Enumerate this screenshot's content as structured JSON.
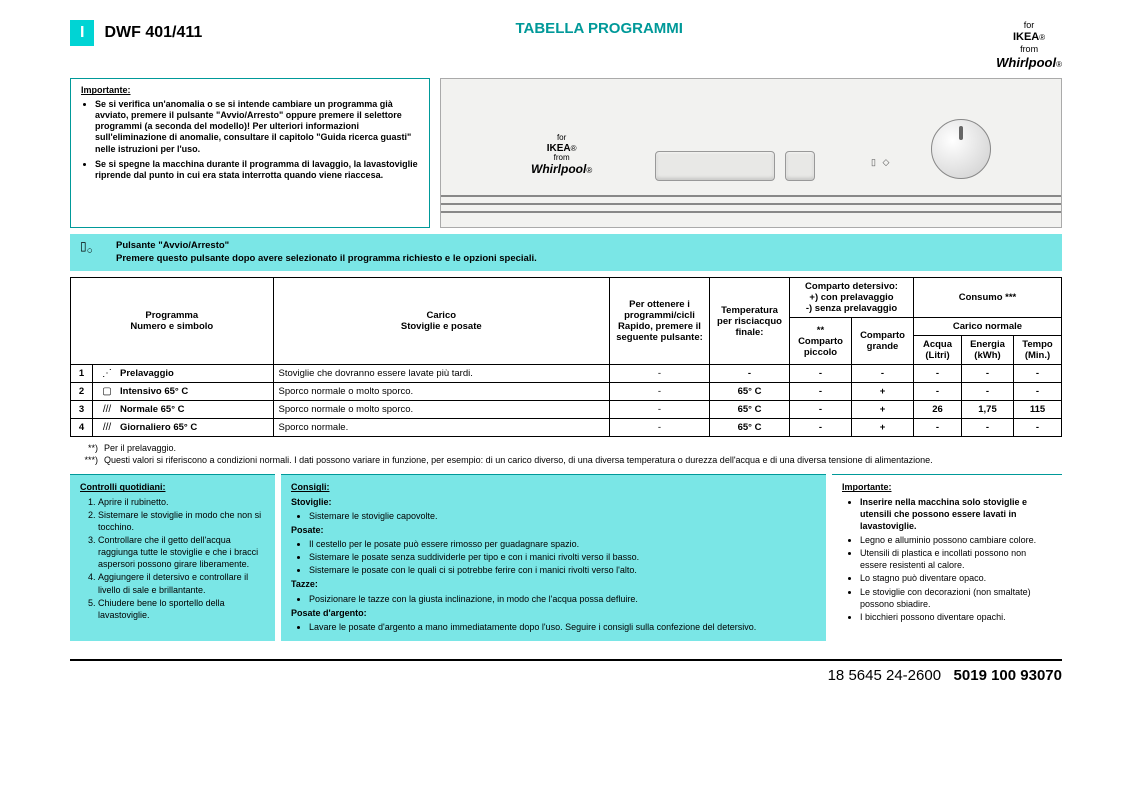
{
  "header": {
    "badge": "I",
    "model": "DWF 401/411",
    "title": "TABELLA PROGRAMMI",
    "brand": {
      "for": "for",
      "ikea": "IKEA",
      "from": "from",
      "whirlpool": "Whirlpool",
      "reg": "®"
    }
  },
  "importante": {
    "heading": "Importante:",
    "items": [
      "Se si verifica un'anomalia o se si intende cambiare un programma già avviato, premere il pulsante \"Avvio/Arresto\" oppure premere il selettore programmi (a seconda del modello)! Per ulteriori informazioni sull'eliminazione di anomalie, consultare il capitolo \"Guida ricerca guasti\" nelle istruzioni per l'uso.",
      "Se si spegne la macchina durante il programma di lavaggio, la lavastoviglie riprende dal punto in cui era stata interrotta quando viene riaccesa."
    ]
  },
  "cyanbar": {
    "line1": "Pulsante \"Avvio/Arresto\"",
    "line2": "Premere questo pulsante dopo avere selezionato il programma richiesto e le opzioni speciali."
  },
  "table": {
    "headers": {
      "programma": "Programma\nNumero e simbolo",
      "carico": "Carico\nStoviglie e posate",
      "rapido": "Per ottenere i programmi/cicli Rapido, premere il seguente pulsante:",
      "temp": "Temperatura per risciacquo finale:",
      "detersivo": "Comparto detersivo:\n+) con prelavaggio\n-) senza prelavaggio",
      "det_piccolo": "** Comparto piccolo",
      "det_grande": "Comparto grande",
      "consumo": "Consumo ***",
      "carico_norm": "Carico normale",
      "acqua": "Acqua (Litri)",
      "energia": "Energia (kWh)",
      "tempo": "Tempo (Min.)"
    },
    "rows": [
      {
        "n": "1",
        "icon": "⋰",
        "name": "Prelavaggio",
        "load": "Stoviglie che dovranno essere lavate più tardi.",
        "rapido": "-",
        "temp": "-",
        "detp": "-",
        "detg": "-",
        "acqua": "-",
        "energia": "-",
        "tempo": "-"
      },
      {
        "n": "2",
        "icon": "▢",
        "name": "Intensivo 65° C",
        "load": "Sporco normale o molto sporco.",
        "rapido": "-",
        "temp": "65° C",
        "detp": "-",
        "detg": "+",
        "acqua": "-",
        "energia": "-",
        "tempo": "-"
      },
      {
        "n": "3",
        "icon": "///",
        "name": "Normale 65° C",
        "load": "Sporco normale o molto sporco.",
        "rapido": "-",
        "temp": "65° C",
        "detp": "-",
        "detg": "+",
        "acqua": "26",
        "energia": "1,75",
        "tempo": "115"
      },
      {
        "n": "4",
        "icon": "///",
        "name": "Giornaliero 65° C",
        "load": "Sporco normale.",
        "rapido": "-",
        "temp": "65° C",
        "detp": "-",
        "detg": "+",
        "acqua": "-",
        "energia": "-",
        "tempo": "-"
      }
    ]
  },
  "footnotes": {
    "a_mark": "**)",
    "a_text": "Per il prelavaggio.",
    "b_mark": "***)",
    "b_text": "Questi valori si riferiscono a condizioni normali. I dati possono variare in funzione, per esempio: di un carico diverso, di una diversa temperatura o durezza dell'acqua e di una diversa tensione di alimentazione."
  },
  "controlli": {
    "heading": "Controlli quotidiani:",
    "items": [
      "Aprire il rubinetto.",
      "Sistemare le stoviglie in modo che non si tocchino.",
      "Controllare che il getto dell'acqua raggiunga tutte le stoviglie e che i bracci aspersori possono girare liberamente.",
      "Aggiungere il detersivo e controllare il livello di sale e brillantante.",
      "Chiudere bene lo sportello della lavastoviglie."
    ]
  },
  "consigli": {
    "heading": "Consigli:",
    "stoviglie_head": "Stoviglie:",
    "stoviglie": [
      "Sistemare le stoviglie capovolte."
    ],
    "posate_head": "Posate:",
    "posate": [
      "Il cestello per le posate può essere rimosso per guadagnare spazio.",
      "Sistemare le posate senza suddividerle per tipo e con i manici rivolti verso il basso.",
      "Sistemare le posate con le quali ci si potrebbe ferire con i manici rivolti verso l'alto."
    ],
    "tazze_head": "Tazze:",
    "tazze": [
      "Posizionare le tazze con la giusta inclinazione, in modo che l'acqua possa defluire."
    ],
    "argento_head": "Posate d'argento:",
    "argento": [
      "Lavare le posate d'argento a mano immediatamente dopo l'uso. Seguire i consigli sulla confezione del detersivo."
    ]
  },
  "importante2": {
    "heading": "Importante:",
    "lead": "Inserire nella macchina solo stoviglie e utensili che possono essere lavati in lavastoviglie.",
    "items": [
      "Legno e alluminio possono cambiare colore.",
      "Utensili di plastica e incollati possono non essere resistenti al calore.",
      "Lo stagno può diventare opaco.",
      "Le stoviglie con decorazioni (non smaltate) possono sbiadire.",
      "I bicchieri possono diventare opachi."
    ]
  },
  "footer": {
    "left": "18 5645 24-2600",
    "right": "5019 100 93070"
  },
  "colors": {
    "teal": "#009999",
    "cyan": "#7ae6e6"
  }
}
